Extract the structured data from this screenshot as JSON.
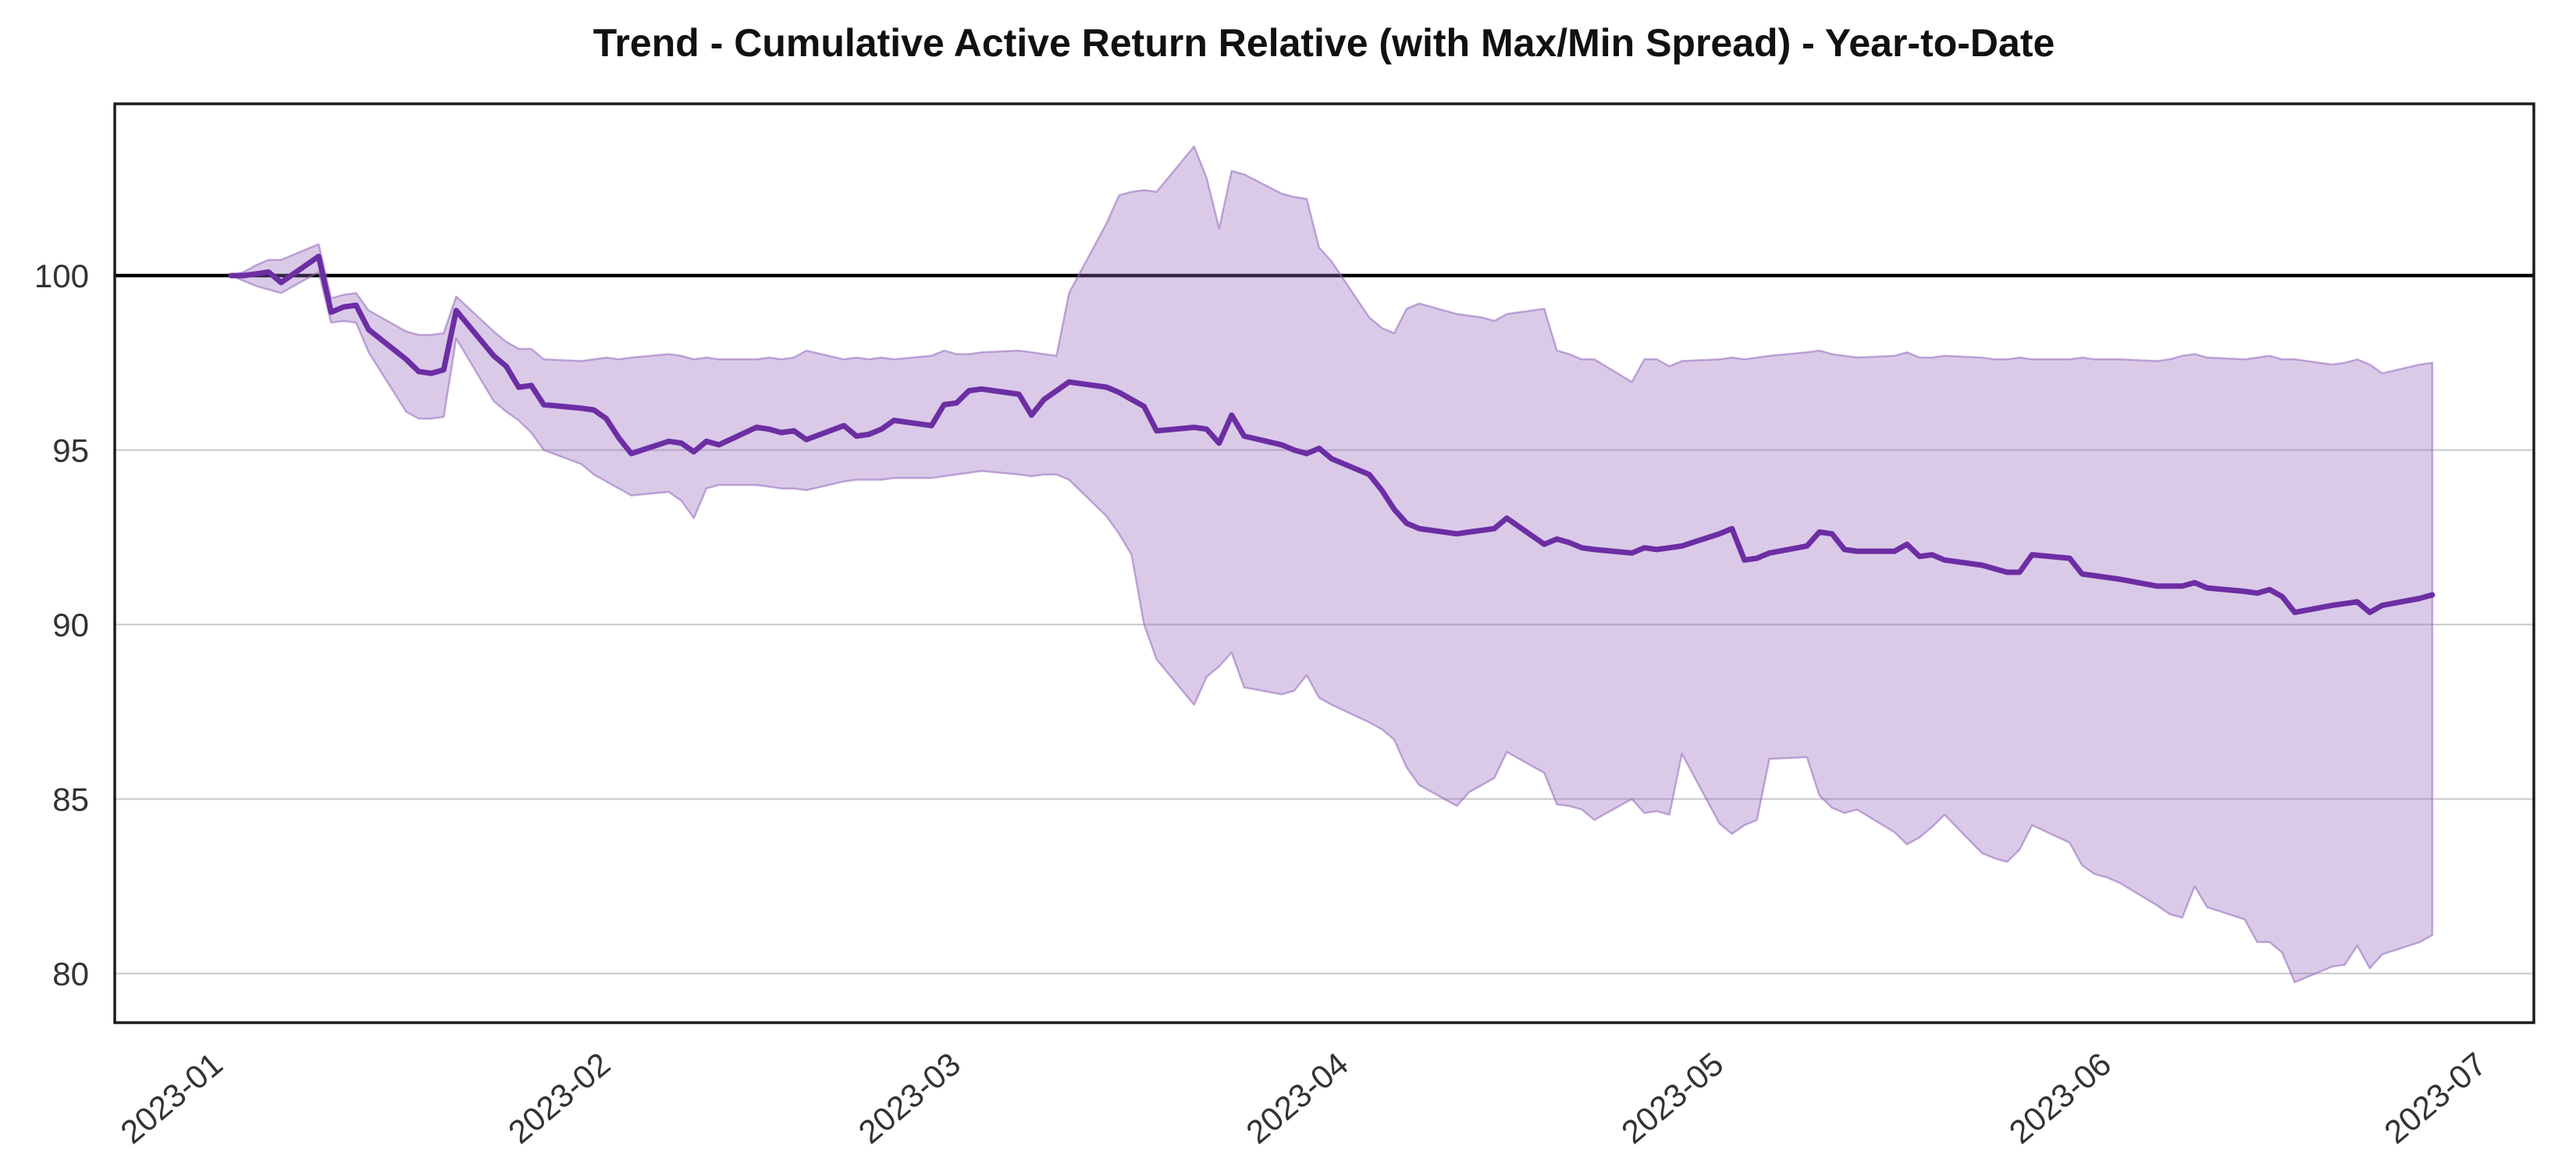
{
  "title": "Trend - Cumulative Active Return Relative (with Max/Min Spread) - Year-to-Date",
  "colors": {
    "mean_line": "#6C2EA3",
    "band_fill": "rgba(148,103,189,0.35)",
    "band_edge": "rgba(148,103,189,0.55)",
    "baseline": "#000000",
    "grid": "#cccccc",
    "spine": "#1c1c1c",
    "tick_text": "#333333",
    "title_text": "#111111"
  },
  "chart_data": {
    "type": "line",
    "title": "Trend - Cumulative Active Return Relative (with Max/Min Spread) - Year-to-Date",
    "xlabel": "",
    "ylabel": "",
    "x_tick_labels": [
      "2023-01",
      "2023-02",
      "2023-03",
      "2023-04",
      "2023-05",
      "2023-06",
      "2023-07"
    ],
    "y_ticks": [
      80,
      85,
      90,
      95,
      100
    ],
    "ylim": [
      78.6,
      104.9
    ],
    "xlim": [
      "2023-01-01",
      "2023-07-01"
    ],
    "baseline": 100,
    "grid": "horizontal",
    "legend": "none",
    "band": "max-min spread filled between Max and Min series",
    "dates": [
      "2023-01-02",
      "2023-01-03",
      "2023-01-04",
      "2023-01-05",
      "2023-01-06",
      "2023-01-09",
      "2023-01-10",
      "2023-01-11",
      "2023-01-12",
      "2023-01-13",
      "2023-01-16",
      "2023-01-17",
      "2023-01-18",
      "2023-01-19",
      "2023-01-20",
      "2023-01-23",
      "2023-01-24",
      "2023-01-25",
      "2023-01-26",
      "2023-01-27",
      "2023-01-30",
      "2023-01-31",
      "2023-02-01",
      "2023-02-02",
      "2023-02-03",
      "2023-02-06",
      "2023-02-07",
      "2023-02-08",
      "2023-02-09",
      "2023-02-10",
      "2023-02-13",
      "2023-02-14",
      "2023-02-15",
      "2023-02-16",
      "2023-02-17",
      "2023-02-20",
      "2023-02-21",
      "2023-02-22",
      "2023-02-23",
      "2023-02-24",
      "2023-02-27",
      "2023-02-28",
      "2023-03-01",
      "2023-03-02",
      "2023-03-03",
      "2023-03-06",
      "2023-03-07",
      "2023-03-08",
      "2023-03-09",
      "2023-03-10",
      "2023-03-13",
      "2023-03-14",
      "2023-03-15",
      "2023-03-16",
      "2023-03-17",
      "2023-03-20",
      "2023-03-21",
      "2023-03-22",
      "2023-03-23",
      "2023-03-24",
      "2023-03-27",
      "2023-03-28",
      "2023-03-29",
      "2023-03-30",
      "2023-03-31",
      "2023-04-03",
      "2023-04-04",
      "2023-04-05",
      "2023-04-06",
      "2023-04-07",
      "2023-04-10",
      "2023-04-11",
      "2023-04-12",
      "2023-04-13",
      "2023-04-14",
      "2023-04-17",
      "2023-04-18",
      "2023-04-19",
      "2023-04-20",
      "2023-04-21",
      "2023-04-24",
      "2023-04-25",
      "2023-04-26",
      "2023-04-27",
      "2023-04-28",
      "2023-05-01",
      "2023-05-02",
      "2023-05-03",
      "2023-05-04",
      "2023-05-05",
      "2023-05-08",
      "2023-05-09",
      "2023-05-10",
      "2023-05-11",
      "2023-05-12",
      "2023-05-15",
      "2023-05-16",
      "2023-05-17",
      "2023-05-18",
      "2023-05-19",
      "2023-05-22",
      "2023-05-23",
      "2023-05-24",
      "2023-05-25",
      "2023-05-26",
      "2023-05-29",
      "2023-05-30",
      "2023-05-31",
      "2023-06-01",
      "2023-06-02",
      "2023-06-05",
      "2023-06-06",
      "2023-06-07",
      "2023-06-08",
      "2023-06-09",
      "2023-06-12",
      "2023-06-13",
      "2023-06-14",
      "2023-06-15",
      "2023-06-16",
      "2023-06-19",
      "2023-06-20",
      "2023-06-21",
      "2023-06-22",
      "2023-06-23",
      "2023-06-26",
      "2023-06-27"
    ],
    "series": [
      {
        "name": "Cumulative Active Return Relative",
        "role": "mean",
        "values": [
          100.0,
          100.0,
          100.05,
          100.1,
          99.8,
          100.55,
          98.95,
          99.1,
          99.15,
          98.45,
          97.6,
          97.25,
          97.2,
          97.3,
          99.0,
          97.7,
          97.4,
          96.8,
          96.85,
          96.3,
          96.2,
          96.15,
          95.9,
          95.35,
          94.9,
          95.25,
          95.2,
          94.95,
          95.25,
          95.15,
          95.65,
          95.6,
          95.5,
          95.55,
          95.3,
          95.7,
          95.4,
          95.45,
          95.6,
          95.85,
          95.7,
          96.3,
          96.35,
          96.7,
          96.75,
          96.6,
          96.0,
          96.45,
          96.7,
          96.95,
          96.8,
          96.65,
          96.45,
          96.25,
          95.55,
          95.65,
          95.6,
          95.2,
          96.0,
          95.4,
          95.15,
          95.0,
          94.9,
          95.05,
          94.75,
          94.3,
          93.85,
          93.3,
          92.9,
          92.75,
          92.6,
          92.65,
          92.7,
          92.75,
          93.05,
          92.3,
          92.45,
          92.35,
          92.2,
          92.15,
          92.05,
          92.2,
          92.15,
          92.2,
          92.25,
          92.6,
          92.75,
          91.85,
          91.9,
          92.05,
          92.25,
          92.65,
          92.6,
          92.15,
          92.1,
          92.1,
          92.3,
          91.95,
          92.0,
          91.85,
          91.7,
          91.6,
          91.5,
          91.5,
          92.0,
          91.9,
          91.45,
          91.4,
          91.35,
          91.3,
          91.1,
          91.1,
          91.1,
          91.2,
          91.05,
          90.95,
          90.9,
          91.0,
          90.8,
          90.35,
          90.55,
          90.6,
          90.65,
          90.35,
          90.55,
          90.75,
          90.85
        ]
      },
      {
        "name": "Max",
        "role": "max",
        "values": [
          100.0,
          100.1,
          100.3,
          100.45,
          100.45,
          100.9,
          99.35,
          99.45,
          99.5,
          99.0,
          98.4,
          98.3,
          98.3,
          98.35,
          99.4,
          98.4,
          98.1,
          97.9,
          97.9,
          97.6,
          97.55,
          97.6,
          97.65,
          97.6,
          97.65,
          97.75,
          97.7,
          97.6,
          97.65,
          97.6,
          97.6,
          97.65,
          97.6,
          97.65,
          97.85,
          97.6,
          97.65,
          97.6,
          97.65,
          97.6,
          97.7,
          97.85,
          97.75,
          97.75,
          97.8,
          97.85,
          97.8,
          97.75,
          97.7,
          99.5,
          101.5,
          102.3,
          102.4,
          102.45,
          102.4,
          103.7,
          102.8,
          101.35,
          103.0,
          102.9,
          102.35,
          102.25,
          102.2,
          100.8,
          100.4,
          98.8,
          98.5,
          98.35,
          99.05,
          99.2,
          98.9,
          98.85,
          98.8,
          98.7,
          98.9,
          99.05,
          97.85,
          97.75,
          97.6,
          97.6,
          96.95,
          97.6,
          97.6,
          97.4,
          97.55,
          97.6,
          97.65,
          97.6,
          97.65,
          97.7,
          97.8,
          97.85,
          97.75,
          97.7,
          97.65,
          97.7,
          97.8,
          97.65,
          97.65,
          97.7,
          97.65,
          97.6,
          97.6,
          97.65,
          97.6,
          97.6,
          97.65,
          97.6,
          97.6,
          97.6,
          97.55,
          97.6,
          97.7,
          97.75,
          97.65,
          97.6,
          97.65,
          97.7,
          97.6,
          97.6,
          97.45,
          97.5,
          97.6,
          97.45,
          97.2,
          97.45,
          97.5
        ]
      },
      {
        "name": "Min",
        "role": "min",
        "values": [
          100.0,
          99.85,
          99.7,
          99.6,
          99.5,
          100.1,
          98.65,
          98.7,
          98.65,
          97.8,
          96.1,
          95.9,
          95.9,
          95.95,
          98.2,
          96.4,
          96.1,
          95.85,
          95.5,
          95.0,
          94.6,
          94.3,
          94.1,
          93.9,
          93.7,
          93.8,
          93.55,
          93.05,
          93.9,
          94.0,
          94.0,
          93.95,
          93.9,
          93.9,
          93.85,
          94.1,
          94.15,
          94.15,
          94.15,
          94.2,
          94.2,
          94.25,
          94.3,
          94.35,
          94.4,
          94.3,
          94.25,
          94.3,
          94.3,
          94.15,
          93.1,
          92.6,
          92.0,
          90.0,
          89.0,
          87.7,
          88.5,
          88.8,
          89.2,
          88.2,
          88.0,
          88.1,
          88.55,
          87.9,
          87.7,
          87.2,
          87.0,
          86.7,
          85.9,
          85.4,
          84.8,
          85.2,
          85.4,
          85.6,
          86.35,
          85.75,
          84.85,
          84.8,
          84.7,
          84.4,
          85.0,
          84.6,
          84.65,
          84.55,
          86.3,
          84.3,
          84.0,
          84.25,
          84.4,
          86.15,
          86.2,
          85.1,
          84.75,
          84.6,
          84.7,
          84.05,
          83.7,
          83.9,
          84.2,
          84.55,
          83.45,
          83.3,
          83.2,
          83.55,
          84.25,
          83.75,
          83.1,
          82.85,
          82.75,
          82.6,
          81.95,
          81.7,
          81.6,
          82.5,
          81.9,
          81.55,
          80.9,
          80.9,
          80.6,
          79.75,
          80.2,
          80.25,
          80.8,
          80.15,
          80.55,
          80.9,
          81.1
        ]
      }
    ]
  }
}
